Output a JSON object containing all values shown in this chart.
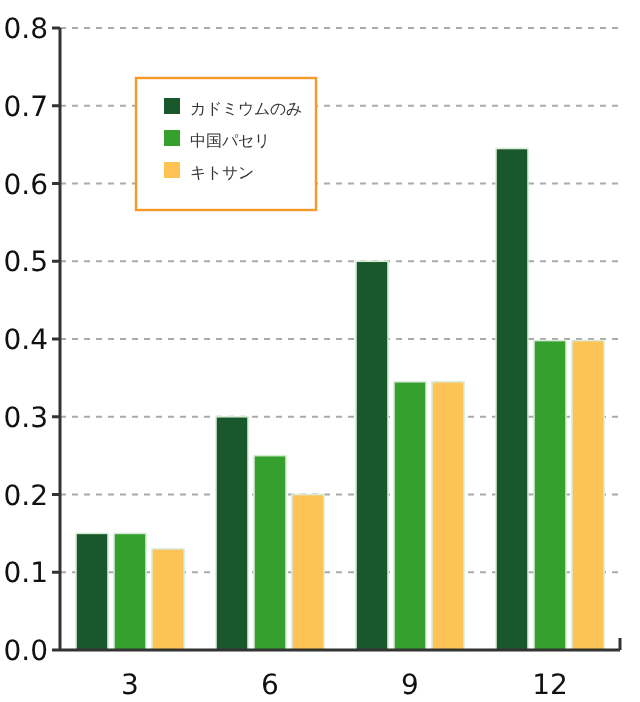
{
  "chart_data": {
    "type": "bar",
    "categories": [
      "3",
      "6",
      "9",
      "12"
    ],
    "series": [
      {
        "name": "カドミウムのみ",
        "color": "#18582c",
        "values": [
          0.15,
          0.3,
          0.5,
          0.645
        ]
      },
      {
        "name": "中国パセリ",
        "color": "#36a02e",
        "values": [
          0.15,
          0.25,
          0.345,
          0.398
        ]
      },
      {
        "name": "キトサン",
        "color": "#fec355",
        "values": [
          0.13,
          0.2,
          0.345,
          0.398
        ]
      }
    ],
    "ylim": [
      0,
      0.8
    ],
    "yticks": [
      {
        "value": 0,
        "label": "0.0"
      },
      0.1,
      0.2,
      0.3,
      0.4,
      0.5,
      0.6,
      0.7,
      0.8
    ],
    "grid": "y",
    "legend": "top left"
  }
}
